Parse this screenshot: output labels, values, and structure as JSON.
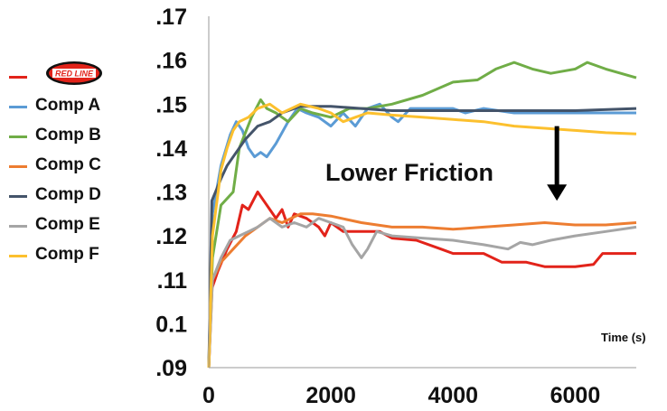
{
  "chart_data": {
    "type": "line",
    "title": "",
    "xlabel": "Time (s)",
    "ylabel": "",
    "xlim": [
      0,
      7000
    ],
    "ylim": [
      0.09,
      0.17
    ],
    "x_ticks": [
      {
        "value": 0,
        "label": "0"
      },
      {
        "value": 2000,
        "label": "2000"
      },
      {
        "value": 4000,
        "label": "4000"
      },
      {
        "value": 6000,
        "label": "6000"
      }
    ],
    "y_ticks": [
      {
        "value": 0.09,
        "label": ".09"
      },
      {
        "value": 0.1,
        "label": "0.1"
      },
      {
        "value": 0.11,
        "label": ".11"
      },
      {
        "value": 0.12,
        "label": ".12"
      },
      {
        "value": 0.13,
        "label": ".13"
      },
      {
        "value": 0.14,
        "label": ".14"
      },
      {
        "value": 0.15,
        "label": ".15"
      },
      {
        "value": 0.16,
        "label": ".16"
      },
      {
        "value": 0.17,
        "label": ".17"
      }
    ],
    "grid": false,
    "legend_position": "left",
    "annotation": {
      "text": "Lower Friction",
      "arrow_x": 5700,
      "arrow_from": 0.145,
      "arrow_to": 0.128
    },
    "series": [
      {
        "name": "",
        "legend_logo": "RED LINE",
        "color": "#e2231a",
        "points": [
          [
            0,
            0.09
          ],
          [
            50,
            0.108
          ],
          [
            150,
            0.112
          ],
          [
            300,
            0.117
          ],
          [
            450,
            0.121
          ],
          [
            550,
            0.127
          ],
          [
            650,
            0.126
          ],
          [
            800,
            0.13
          ],
          [
            900,
            0.128
          ],
          [
            1000,
            0.126
          ],
          [
            1100,
            0.124
          ],
          [
            1200,
            0.126
          ],
          [
            1300,
            0.122
          ],
          [
            1400,
            0.125
          ],
          [
            1600,
            0.124
          ],
          [
            1800,
            0.122
          ],
          [
            1900,
            0.12
          ],
          [
            2000,
            0.123
          ],
          [
            2200,
            0.121
          ],
          [
            2500,
            0.121
          ],
          [
            2800,
            0.121
          ],
          [
            3000,
            0.1195
          ],
          [
            3400,
            0.119
          ],
          [
            3800,
            0.117
          ],
          [
            4000,
            0.116
          ],
          [
            4500,
            0.116
          ],
          [
            4800,
            0.114
          ],
          [
            5200,
            0.114
          ],
          [
            5500,
            0.113
          ],
          [
            6000,
            0.113
          ],
          [
            6300,
            0.1135
          ],
          [
            6450,
            0.116
          ],
          [
            7000,
            0.116
          ]
        ]
      },
      {
        "name": "Comp A",
        "color": "#5b9bd5",
        "points": [
          [
            0,
            0.09
          ],
          [
            60,
            0.125
          ],
          [
            200,
            0.136
          ],
          [
            350,
            0.143
          ],
          [
            450,
            0.146
          ],
          [
            550,
            0.144
          ],
          [
            650,
            0.14
          ],
          [
            750,
            0.138
          ],
          [
            850,
            0.139
          ],
          [
            950,
            0.138
          ],
          [
            1100,
            0.141
          ],
          [
            1300,
            0.146
          ],
          [
            1450,
            0.149
          ],
          [
            1600,
            0.148
          ],
          [
            1800,
            0.147
          ],
          [
            2000,
            0.145
          ],
          [
            2200,
            0.148
          ],
          [
            2400,
            0.145
          ],
          [
            2600,
            0.149
          ],
          [
            2800,
            0.15
          ],
          [
            3000,
            0.147
          ],
          [
            3100,
            0.146
          ],
          [
            3300,
            0.149
          ],
          [
            3600,
            0.149
          ],
          [
            4000,
            0.149
          ],
          [
            4200,
            0.148
          ],
          [
            4500,
            0.149
          ],
          [
            5000,
            0.148
          ],
          [
            6000,
            0.148
          ],
          [
            7000,
            0.148
          ]
        ]
      },
      {
        "name": "Comp B",
        "color": "#70ad47",
        "points": [
          [
            0,
            0.09
          ],
          [
            60,
            0.115
          ],
          [
            200,
            0.127
          ],
          [
            400,
            0.13
          ],
          [
            500,
            0.14
          ],
          [
            700,
            0.147
          ],
          [
            850,
            0.151
          ],
          [
            950,
            0.149
          ],
          [
            1100,
            0.148
          ],
          [
            1300,
            0.146
          ],
          [
            1500,
            0.149
          ],
          [
            1700,
            0.148
          ],
          [
            2000,
            0.147
          ],
          [
            2300,
            0.149
          ],
          [
            2600,
            0.149
          ],
          [
            3000,
            0.15
          ],
          [
            3500,
            0.152
          ],
          [
            4000,
            0.155
          ],
          [
            4400,
            0.1555
          ],
          [
            4700,
            0.158
          ],
          [
            5000,
            0.1595
          ],
          [
            5300,
            0.158
          ],
          [
            5600,
            0.157
          ],
          [
            6000,
            0.158
          ],
          [
            6200,
            0.1595
          ],
          [
            6500,
            0.158
          ],
          [
            7000,
            0.156
          ]
        ]
      },
      {
        "name": "Comp C",
        "color": "#ed7d31",
        "points": [
          [
            0,
            0.09
          ],
          [
            60,
            0.11
          ],
          [
            200,
            0.114
          ],
          [
            400,
            0.117
          ],
          [
            600,
            0.12
          ],
          [
            800,
            0.122
          ],
          [
            1000,
            0.124
          ],
          [
            1200,
            0.123
          ],
          [
            1500,
            0.125
          ],
          [
            1700,
            0.125
          ],
          [
            2000,
            0.1245
          ],
          [
            2500,
            0.123
          ],
          [
            3000,
            0.122
          ],
          [
            3500,
            0.122
          ],
          [
            4000,
            0.1215
          ],
          [
            4500,
            0.122
          ],
          [
            5000,
            0.1225
          ],
          [
            5500,
            0.123
          ],
          [
            6000,
            0.1225
          ],
          [
            6500,
            0.1225
          ],
          [
            7000,
            0.123
          ]
        ]
      },
      {
        "name": "Comp D",
        "color": "#44546a",
        "points": [
          [
            0,
            0.09
          ],
          [
            50,
            0.128
          ],
          [
            200,
            0.133
          ],
          [
            300,
            0.136
          ],
          [
            450,
            0.139
          ],
          [
            600,
            0.142
          ],
          [
            800,
            0.145
          ],
          [
            1000,
            0.146
          ],
          [
            1200,
            0.148
          ],
          [
            1500,
            0.1495
          ],
          [
            2000,
            0.1495
          ],
          [
            2500,
            0.149
          ],
          [
            3000,
            0.1485
          ],
          [
            4000,
            0.1485
          ],
          [
            5000,
            0.1485
          ],
          [
            6000,
            0.1485
          ],
          [
            7000,
            0.149
          ]
        ]
      },
      {
        "name": "Comp E",
        "color": "#a5a5a5",
        "points": [
          [
            0,
            0.09
          ],
          [
            60,
            0.11
          ],
          [
            200,
            0.115
          ],
          [
            350,
            0.119
          ],
          [
            500,
            0.12
          ],
          [
            650,
            0.121
          ],
          [
            800,
            0.122
          ],
          [
            1000,
            0.124
          ],
          [
            1200,
            0.122
          ],
          [
            1400,
            0.123
          ],
          [
            1600,
            0.122
          ],
          [
            1800,
            0.124
          ],
          [
            2000,
            0.123
          ],
          [
            2200,
            0.122
          ],
          [
            2350,
            0.118
          ],
          [
            2500,
            0.115
          ],
          [
            2600,
            0.117
          ],
          [
            2750,
            0.121
          ],
          [
            3000,
            0.12
          ],
          [
            3500,
            0.1195
          ],
          [
            4000,
            0.119
          ],
          [
            4500,
            0.118
          ],
          [
            4900,
            0.117
          ],
          [
            5100,
            0.1185
          ],
          [
            5300,
            0.118
          ],
          [
            5600,
            0.119
          ],
          [
            6000,
            0.12
          ],
          [
            6500,
            0.121
          ],
          [
            7000,
            0.122
          ]
        ]
      },
      {
        "name": "Comp F",
        "color": "#fcc02e",
        "points": [
          [
            0,
            0.09
          ],
          [
            60,
            0.12
          ],
          [
            200,
            0.135
          ],
          [
            300,
            0.14
          ],
          [
            400,
            0.144
          ],
          [
            500,
            0.146
          ],
          [
            650,
            0.147
          ],
          [
            800,
            0.149
          ],
          [
            1000,
            0.15
          ],
          [
            1200,
            0.148
          ],
          [
            1500,
            0.15
          ],
          [
            1800,
            0.149
          ],
          [
            2000,
            0.148
          ],
          [
            2200,
            0.146
          ],
          [
            2400,
            0.147
          ],
          [
            2600,
            0.148
          ],
          [
            3000,
            0.1475
          ],
          [
            3500,
            0.147
          ],
          [
            4000,
            0.1465
          ],
          [
            4500,
            0.146
          ],
          [
            5000,
            0.145
          ],
          [
            5500,
            0.1445
          ],
          [
            6000,
            0.144
          ],
          [
            6500,
            0.1435
          ],
          [
            7000,
            0.1432
          ]
        ]
      }
    ]
  }
}
